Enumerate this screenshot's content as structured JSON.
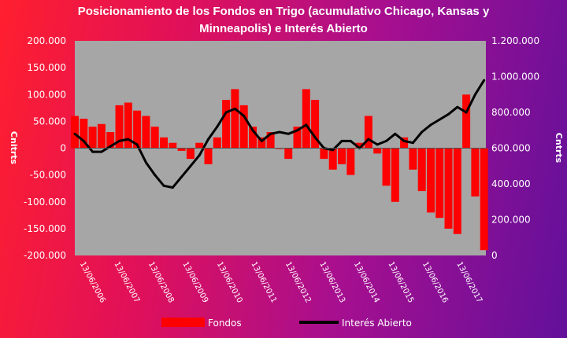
{
  "chart_data": {
    "type": "bar",
    "title": "Posicionamiento de los Fondos en Trigo (acumulativo Chicago, Kansas y Minneapolis) e Interés Abierto",
    "ylabel_left": "Cnitrts",
    "ylabel_right": "Cntrts",
    "y_left": {
      "lim": [
        -200000,
        200000
      ],
      "ticks": [
        "200.000",
        "150.000",
        "100.000",
        "50.000",
        "0",
        "-50.000",
        "-100.000",
        "-150.000",
        "-200.000"
      ]
    },
    "y_right": {
      "lim": [
        0,
        1200000
      ],
      "ticks": [
        "1.200.000",
        "1.000.000",
        "800.000",
        "600.000",
        "400.000",
        "200.000",
        "0"
      ]
    },
    "x_ticks": [
      "13/06/2006",
      "13/06/2007",
      "13/06/2008",
      "13/06/2009",
      "13/06/2010",
      "13/06/2011",
      "13/06/2012",
      "13/06/2013",
      "13/06/2014",
      "13/06/2015",
      "13/06/2016",
      "13/06/2017"
    ],
    "x_range": [
      2006.0,
      2017.55
    ],
    "series": [
      {
        "name": "Fondos",
        "type": "bar",
        "color": "#ff0000",
        "x": [
          2006.0,
          2006.25,
          2006.5,
          2006.75,
          2007.0,
          2007.25,
          2007.5,
          2007.75,
          2008.0,
          2008.25,
          2008.5,
          2008.75,
          2009.0,
          2009.25,
          2009.5,
          2009.75,
          2010.0,
          2010.25,
          2010.5,
          2010.75,
          2011.0,
          2011.25,
          2011.5,
          2011.75,
          2012.0,
          2012.25,
          2012.5,
          2012.75,
          2013.0,
          2013.25,
          2013.5,
          2013.75,
          2014.0,
          2014.25,
          2014.5,
          2014.75,
          2015.0,
          2015.25,
          2015.5,
          2015.75,
          2016.0,
          2016.25,
          2016.5,
          2016.75,
          2017.0,
          2017.25,
          2017.5
        ],
        "values": [
          60000,
          55000,
          40000,
          45000,
          30000,
          80000,
          85000,
          70000,
          60000,
          40000,
          20000,
          10000,
          -5000,
          -20000,
          10000,
          -30000,
          20000,
          90000,
          110000,
          80000,
          40000,
          20000,
          30000,
          0,
          -20000,
          40000,
          110000,
          90000,
          -20000,
          -40000,
          -30000,
          -50000,
          10000,
          60000,
          -10000,
          -70000,
          -100000,
          20000,
          -40000,
          -80000,
          -120000,
          -130000,
          -150000,
          -160000,
          100000,
          -90000,
          -190000
        ]
      },
      {
        "name": "Interés Abierto",
        "type": "line",
        "color": "#000000",
        "x": [
          2006.0,
          2006.25,
          2006.5,
          2006.75,
          2007.0,
          2007.25,
          2007.5,
          2007.75,
          2008.0,
          2008.25,
          2008.5,
          2008.75,
          2009.0,
          2009.25,
          2009.5,
          2009.75,
          2010.0,
          2010.25,
          2010.5,
          2010.75,
          2011.0,
          2011.25,
          2011.5,
          2011.75,
          2012.0,
          2012.25,
          2012.5,
          2012.75,
          2013.0,
          2013.25,
          2013.5,
          2013.75,
          2014.0,
          2014.25,
          2014.5,
          2014.75,
          2015.0,
          2015.25,
          2015.5,
          2015.75,
          2016.0,
          2016.25,
          2016.5,
          2016.75,
          2017.0,
          2017.25,
          2017.5
        ],
        "values": [
          680000,
          640000,
          580000,
          580000,
          610000,
          640000,
          650000,
          620000,
          520000,
          450000,
          390000,
          380000,
          440000,
          500000,
          560000,
          650000,
          720000,
          800000,
          820000,
          780000,
          700000,
          640000,
          680000,
          690000,
          680000,
          700000,
          730000,
          660000,
          600000,
          590000,
          640000,
          640000,
          600000,
          650000,
          620000,
          640000,
          680000,
          640000,
          630000,
          690000,
          730000,
          760000,
          790000,
          830000,
          800000,
          900000,
          980000
        ]
      }
    ],
    "legend": [
      "Fondos",
      "Interés Abierto"
    ],
    "legend_position": "bottom",
    "grid": false,
    "plot_background": "#a6a6a6"
  }
}
